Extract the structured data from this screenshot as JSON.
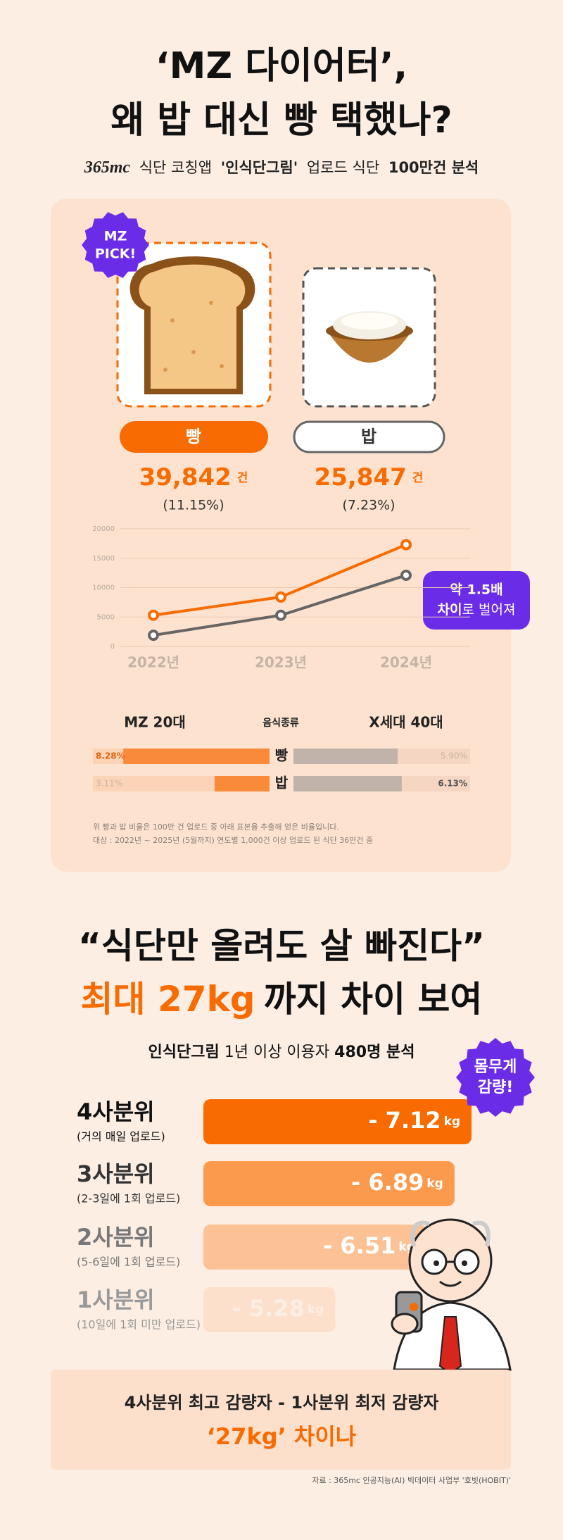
{
  "header": {
    "title_lines": [
      "‘MZ 다이어터’,",
      "왜 밥 대신 빵 택했나?"
    ],
    "subtitle": {
      "logo": "365mc",
      "part1": "식단 코칭앱",
      "app": "'인식단그림'",
      "part2": "업로드 식단",
      "part3": "100만건 분석"
    }
  },
  "badge1": [
    "MZ",
    "PICK!"
  ],
  "items": [
    {
      "name": "빵",
      "count": "39,842",
      "unit": "건",
      "share": "(11.15%)"
    },
    {
      "name": "밥",
      "count": "25,847",
      "unit": "건",
      "share": "(7.23%)"
    }
  ],
  "annotation": {
    "line1": "약 1.5배",
    "line2_bold": "차이",
    "line2_rest": "로 벌어져"
  },
  "footnotes": [
    "위 빵과 밥 비율은 100만 건 업로드 중 아래 표본을 추출해 얻은 비율입니다.",
    "대상 : 2022년 ~ 2025년 (5월까지) 연도별 1,000건 이상 업로드 된 식단 36만건 중"
  ],
  "section2": {
    "title_line1": "“식단만 올려도 살 빠진다”",
    "title_line2_accent": "최대 27kg",
    "title_line2_rest": "까지 차이 보여",
    "subtitle": {
      "bold1": "인식단그림",
      "part": "1년 이상 이용자",
      "bold2": "480명 분석"
    },
    "badge": [
      "몸무게",
      "감량!"
    ]
  },
  "summary": {
    "line1": "4사분위 최고 감량자 - 1사분위 최저 감량자",
    "line2": "‘27kg’ 차이나"
  },
  "source": "자료 : 365mc 인공지능(AI) 빅데이터 사업부 '호빗(HOBIT)'",
  "chart_data": [
    {
      "type": "line",
      "categories": [
        "2022년",
        "2023년",
        "2024년"
      ],
      "series": [
        {
          "color": "#f76b00",
          "values": [
            5300,
            8400,
            17300
          ]
        },
        {
          "color": "#666666",
          "values": [
            1900,
            5300,
            12100
          ]
        }
      ],
      "ylim": [
        0,
        20000
      ],
      "yticks": [
        0,
        5000,
        10000,
        15000,
        20000
      ],
      "grid": true
    },
    {
      "type": "diverging",
      "categories": [
        "빵",
        "밥"
      ],
      "category_label": "음식종류",
      "series": [
        {
          "name": "MZ 20대",
          "color": "#f98a3a",
          "values": [
            8.28,
            3.11
          ],
          "value_labels": [
            "8.28%",
            "3.11%"
          ]
        },
        {
          "name": "X세대 40대",
          "color": "#c2b3aa",
          "values": [
            5.9,
            6.13
          ],
          "value_labels": [
            "5.90%",
            "6.13%"
          ]
        }
      ],
      "xlim": [
        0,
        10
      ]
    },
    {
      "type": "hbar",
      "categories": [
        "4사분위",
        "3사분위",
        "2사분위",
        "1사분위"
      ],
      "subcategories": [
        "(거의 매일 업로드)",
        "(2-3일에 1회 업로드)",
        "(5-6일에 1회 업로드)",
        "(10일에 1회 미만 업로드)"
      ],
      "values": [
        -7.12,
        -6.89,
        -6.51,
        -5.28
      ],
      "value_labels": [
        "- 7.12",
        "- 6.89",
        "- 6.51",
        "- 5.28"
      ],
      "unit": "kg",
      "colors": [
        "#f76b00",
        "#fb9a4c",
        "#fdc196",
        "#fde0cc"
      ],
      "xlim": [
        -3.5,
        -7.3
      ]
    }
  ]
}
